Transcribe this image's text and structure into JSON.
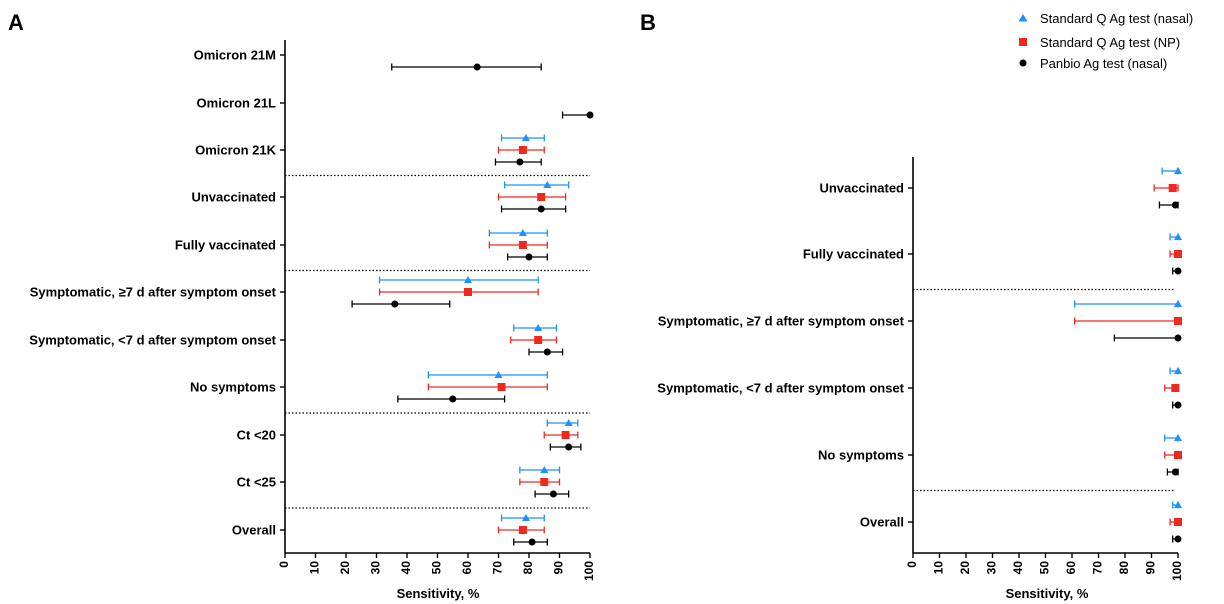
{
  "chart_data": [
    {
      "type": "forest",
      "panel_label": "A",
      "xlabel": "Sensitivity, %",
      "xlim": [
        0,
        100
      ],
      "xticks": [
        0,
        10,
        20,
        30,
        40,
        50,
        60,
        70,
        80,
        90,
        100
      ],
      "categories": [
        "Omicron 21M",
        "Omicron 21L",
        "Omicron 21K",
        "Unvaccinated",
        "Fully vaccinated",
        "Symptomatic, ≥7 d after symptom onset",
        "Symptomatic, <7 d after symptom onset",
        "No symptoms",
        "Ct <20",
        "Ct <25",
        "Overall"
      ],
      "group_separators_after": [
        "Omicron 21K",
        "Fully vaccinated",
        "No symptoms",
        "Ct <25"
      ],
      "series": [
        {
          "name": "Standard Q Ag test (nasal)",
          "color": "#1e90ff",
          "marker": "triangle",
          "estimates": [
            null,
            null,
            79,
            86,
            78,
            60,
            83,
            70,
            93,
            85,
            79
          ],
          "ci_low": [
            null,
            null,
            71,
            72,
            67,
            31,
            75,
            47,
            86,
            77,
            71
          ],
          "ci_high": [
            null,
            null,
            85,
            93,
            86,
            83,
            89,
            86,
            96,
            90,
            85
          ]
        },
        {
          "name": "Standard Q Ag test (NP)",
          "color": "#f0281e",
          "marker": "square",
          "estimates": [
            null,
            null,
            78,
            84,
            78,
            60,
            83,
            71,
            92,
            85,
            78
          ],
          "ci_low": [
            null,
            null,
            70,
            70,
            67,
            31,
            74,
            47,
            85,
            77,
            70
          ],
          "ci_high": [
            null,
            null,
            85,
            92,
            86,
            83,
            89,
            86,
            96,
            90,
            85
          ]
        },
        {
          "name": "Panbio Ag test (nasal)",
          "color": "#000000",
          "marker": "circle",
          "estimates": [
            63,
            100,
            77,
            84,
            80,
            36,
            86,
            55,
            93,
            88,
            81
          ],
          "ci_low": [
            35,
            91,
            69,
            71,
            73,
            22,
            80,
            37,
            87,
            82,
            75
          ],
          "ci_high": [
            84,
            100,
            84,
            92,
            86,
            54,
            91,
            72,
            97,
            93,
            86
          ]
        }
      ]
    },
    {
      "type": "forest",
      "panel_label": "B",
      "xlabel": "Sensitivity, %",
      "xlim": [
        0,
        100
      ],
      "xticks": [
        0,
        10,
        20,
        30,
        40,
        50,
        60,
        70,
        80,
        90,
        100
      ],
      "categories": [
        "Unvaccinated",
        "Fully vaccinated",
        "Symptomatic, ≥7 d after symptom onset",
        "Symptomatic, <7 d after symptom onset",
        "No symptoms",
        "Overall"
      ],
      "group_separators_after": [
        "Fully vaccinated",
        "No symptoms"
      ],
      "series": [
        {
          "name": "Standard Q Ag test (nasal)",
          "color": "#1e90ff",
          "marker": "triangle",
          "estimates": [
            100,
            100,
            100,
            100,
            100,
            100
          ],
          "ci_low": [
            94,
            97,
            61,
            97,
            95,
            98
          ],
          "ci_high": [
            100,
            100,
            100,
            100,
            100,
            100
          ]
        },
        {
          "name": "Standard Q Ag test (NP)",
          "color": "#f0281e",
          "marker": "square",
          "estimates": [
            98,
            100,
            100,
            99,
            100,
            100
          ],
          "ci_low": [
            91,
            97,
            61,
            95,
            95,
            97
          ],
          "ci_high": [
            100,
            100,
            100,
            100,
            100,
            100
          ]
        },
        {
          "name": "Panbio Ag test (nasal)",
          "color": "#000000",
          "marker": "circle",
          "estimates": [
            99,
            100,
            100,
            100,
            99,
            100
          ],
          "ci_low": [
            93,
            98,
            76,
            98,
            96,
            98
          ],
          "ci_high": [
            100,
            100,
            100,
            100,
            100,
            100
          ]
        }
      ]
    }
  ],
  "legend": {
    "placement": "top-right",
    "entries": [
      "Standard Q Ag test (nasal)",
      "Standard Q Ag test (NP)",
      "Panbio Ag test (nasal)"
    ]
  }
}
